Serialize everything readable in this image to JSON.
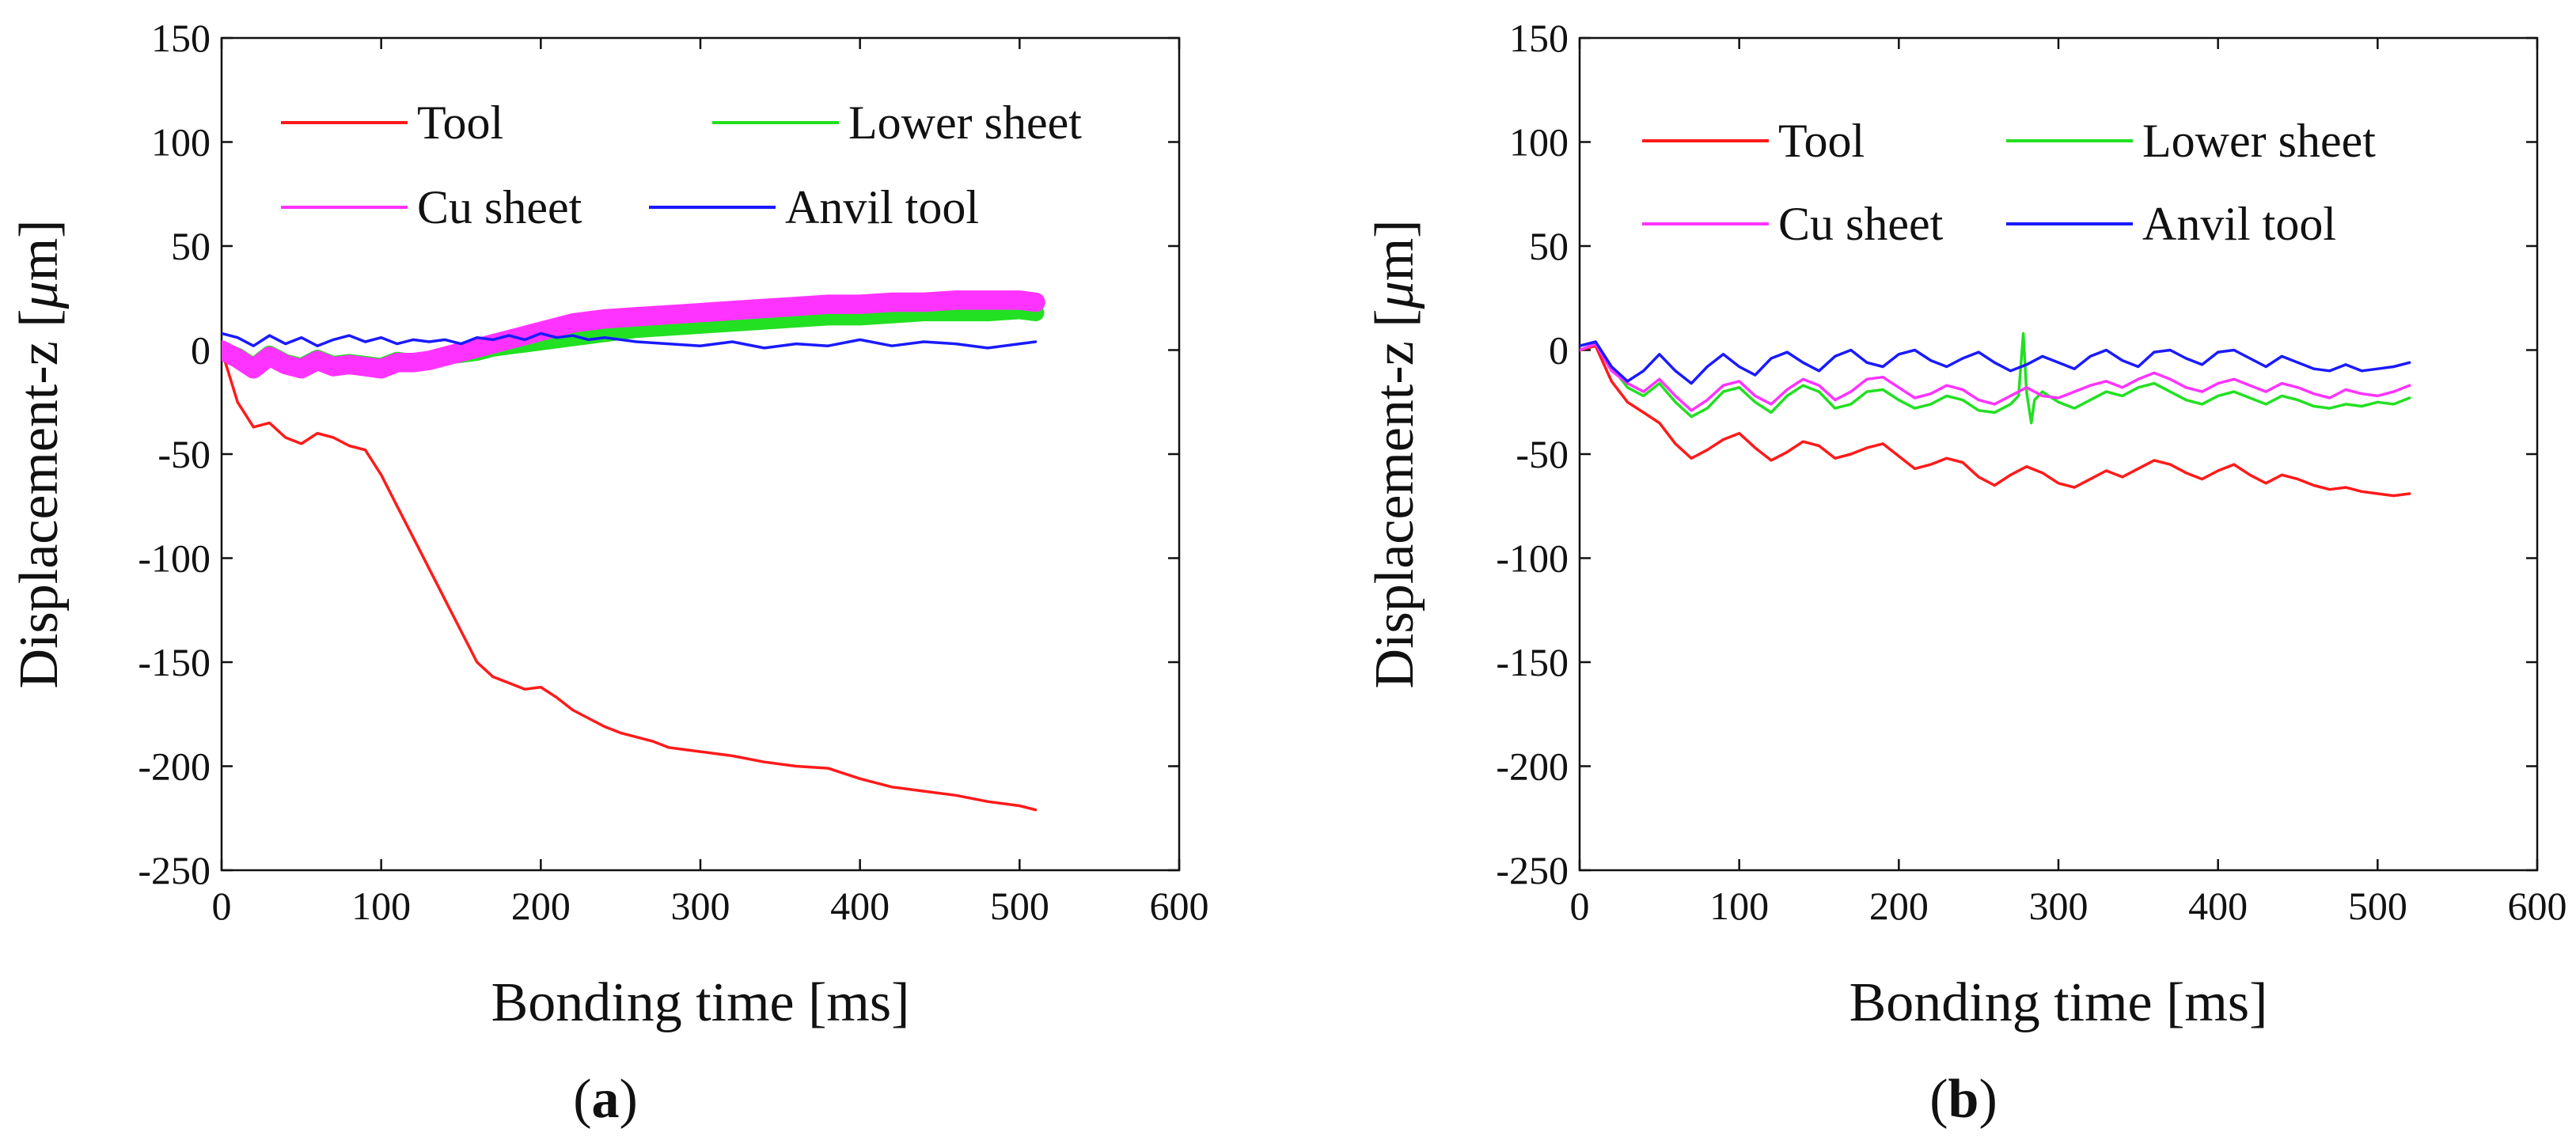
{
  "chart_data": [
    {
      "type": "line",
      "panel_label": "a",
      "xlabel": "Bonding time [ms]",
      "ylabel_prefix": "Displacement-z [",
      "ylabel_unit_italic": "μ",
      "ylabel_suffix": "m]",
      "xlim": [
        0,
        600
      ],
      "ylim": [
        -250,
        150
      ],
      "xticks": [
        0,
        100,
        200,
        300,
        400,
        500,
        600
      ],
      "yticks": [
        -250,
        -200,
        -150,
        -100,
        -50,
        0,
        50,
        100,
        150
      ],
      "legend": {
        "placement": "top",
        "entries": [
          "Tool",
          "Lower sheet",
          "Cu sheet",
          "Anvil tool"
        ]
      },
      "series": [
        {
          "name": "Tool",
          "color": "#ff1a1a",
          "band": 0,
          "x": [
            0,
            10,
            20,
            30,
            40,
            50,
            60,
            70,
            80,
            90,
            100,
            110,
            120,
            130,
            140,
            150,
            160,
            170,
            180,
            190,
            200,
            210,
            220,
            230,
            240,
            250,
            260,
            270,
            280,
            290,
            300,
            320,
            340,
            360,
            380,
            400,
            420,
            440,
            460,
            480,
            500,
            510
          ],
          "y": [
            0,
            -25,
            -37,
            -35,
            -42,
            -45,
            -40,
            -42,
            -46,
            -48,
            -60,
            -75,
            -90,
            -105,
            -120,
            -135,
            -150,
            -157,
            -160,
            -163,
            -162,
            -167,
            -173,
            -177,
            -181,
            -184,
            -186,
            -188,
            -191,
            -192,
            -193,
            -195,
            -198,
            -200,
            -201,
            -206,
            -210,
            -212,
            -214,
            -217,
            -219,
            -221
          ]
        },
        {
          "name": "Lower sheet",
          "color": "#22e022",
          "band": 7,
          "x": [
            0,
            10,
            20,
            30,
            40,
            50,
            60,
            70,
            80,
            90,
            100,
            110,
            120,
            130,
            140,
            150,
            160,
            170,
            180,
            190,
            200,
            210,
            220,
            230,
            240,
            260,
            280,
            300,
            320,
            340,
            360,
            380,
            400,
            420,
            440,
            460,
            480,
            500,
            510
          ],
          "y": [
            0,
            -3,
            -8,
            -2,
            -6,
            -8,
            -4,
            -7,
            -6,
            -7,
            -8,
            -5,
            -6,
            -5,
            -3,
            -2,
            -1,
            1,
            2,
            3,
            4,
            5,
            6,
            7,
            8,
            10,
            11,
            12,
            13,
            14,
            15,
            16,
            16,
            17,
            18,
            18,
            18,
            19,
            18
          ]
        },
        {
          "name": "Cu sheet",
          "color": "#ff33ff",
          "band": 8,
          "x": [
            0,
            10,
            20,
            30,
            40,
            50,
            60,
            70,
            80,
            90,
            100,
            110,
            120,
            130,
            140,
            150,
            160,
            170,
            180,
            190,
            200,
            210,
            220,
            230,
            240,
            260,
            280,
            300,
            320,
            340,
            360,
            380,
            400,
            420,
            440,
            460,
            480,
            500,
            510
          ],
          "y": [
            0,
            -4,
            -9,
            -3,
            -7,
            -9,
            -5,
            -8,
            -7,
            -8,
            -9,
            -6,
            -6,
            -5,
            -3,
            -1,
            1,
            3,
            5,
            7,
            9,
            11,
            13,
            14,
            15,
            16,
            17,
            18,
            19,
            20,
            21,
            22,
            22,
            23,
            23,
            24,
            24,
            24,
            23
          ]
        },
        {
          "name": "Anvil tool",
          "color": "#1a1aff",
          "band": 0,
          "x": [
            0,
            10,
            20,
            30,
            40,
            50,
            60,
            70,
            80,
            90,
            100,
            110,
            120,
            130,
            140,
            150,
            160,
            170,
            180,
            190,
            200,
            210,
            220,
            230,
            240,
            260,
            280,
            300,
            320,
            340,
            360,
            380,
            400,
            420,
            440,
            460,
            480,
            500,
            510
          ],
          "y": [
            8,
            6,
            2,
            7,
            3,
            6,
            2,
            5,
            7,
            4,
            6,
            3,
            5,
            4,
            5,
            3,
            6,
            5,
            7,
            5,
            8,
            6,
            7,
            5,
            6,
            4,
            3,
            2,
            4,
            1,
            3,
            2,
            5,
            2,
            4,
            3,
            1,
            3,
            4
          ]
        }
      ]
    },
    {
      "type": "line",
      "panel_label": "b",
      "xlabel": "Bonding time [ms]",
      "ylabel_prefix": "Displacement-z [",
      "ylabel_unit_italic": "μ",
      "ylabel_suffix": "m]",
      "xlim": [
        0,
        600
      ],
      "ylim": [
        -250,
        150
      ],
      "xticks": [
        0,
        100,
        200,
        300,
        400,
        500,
        600
      ],
      "yticks": [
        -250,
        -200,
        -150,
        -100,
        -50,
        0,
        50,
        100,
        150
      ],
      "legend": {
        "placement": "top",
        "entries": [
          "Tool",
          "Lower sheet",
          "Cu sheet",
          "Anvil tool"
        ]
      },
      "series": [
        {
          "name": "Tool",
          "color": "#ff1a1a",
          "band": 0,
          "x": [
            0,
            10,
            20,
            30,
            40,
            50,
            60,
            70,
            80,
            90,
            100,
            110,
            120,
            130,
            140,
            150,
            160,
            170,
            180,
            190,
            200,
            210,
            220,
            230,
            240,
            250,
            260,
            270,
            280,
            290,
            300,
            310,
            320,
            330,
            340,
            350,
            360,
            370,
            380,
            390,
            400,
            410,
            420,
            430,
            440,
            450,
            460,
            470,
            480,
            490,
            500,
            510,
            520
          ],
          "y": [
            0,
            2,
            -15,
            -25,
            -30,
            -35,
            -45,
            -52,
            -48,
            -43,
            -40,
            -47,
            -53,
            -49,
            -44,
            -46,
            -52,
            -50,
            -47,
            -45,
            -51,
            -57,
            -55,
            -52,
            -54,
            -61,
            -65,
            -60,
            -56,
            -59,
            -64,
            -66,
            -62,
            -58,
            -61,
            -57,
            -53,
            -55,
            -59,
            -62,
            -58,
            -55,
            -60,
            -64,
            -60,
            -62,
            -65,
            -67,
            -66,
            -68,
            -69,
            -70,
            -69
          ]
        },
        {
          "name": "Lower sheet",
          "color": "#22e022",
          "band": 0,
          "x": [
            0,
            10,
            20,
            30,
            40,
            50,
            60,
            70,
            80,
            90,
            100,
            110,
            120,
            130,
            140,
            150,
            160,
            170,
            180,
            190,
            200,
            210,
            220,
            230,
            240,
            250,
            260,
            270,
            275,
            278,
            280,
            283,
            285,
            290,
            300,
            310,
            320,
            330,
            340,
            350,
            360,
            370,
            380,
            390,
            400,
            410,
            420,
            430,
            440,
            450,
            460,
            470,
            480,
            490,
            500,
            510,
            520
          ],
          "y": [
            0,
            3,
            -8,
            -18,
            -22,
            -16,
            -25,
            -32,
            -28,
            -20,
            -18,
            -25,
            -30,
            -22,
            -17,
            -20,
            -28,
            -26,
            -20,
            -19,
            -24,
            -28,
            -26,
            -22,
            -24,
            -29,
            -30,
            -26,
            -22,
            8,
            -20,
            -35,
            -24,
            -20,
            -25,
            -28,
            -24,
            -20,
            -22,
            -18,
            -16,
            -20,
            -24,
            -26,
            -22,
            -20,
            -23,
            -26,
            -22,
            -24,
            -27,
            -28,
            -26,
            -27,
            -25,
            -26,
            -23
          ]
        },
        {
          "name": "Cu sheet",
          "color": "#ff33ff",
          "band": 0,
          "x": [
            0,
            10,
            20,
            30,
            40,
            50,
            60,
            70,
            80,
            90,
            100,
            110,
            120,
            130,
            140,
            150,
            160,
            170,
            180,
            190,
            200,
            210,
            220,
            230,
            240,
            250,
            260,
            270,
            280,
            290,
            300,
            310,
            320,
            330,
            340,
            350,
            360,
            370,
            380,
            390,
            400,
            410,
            420,
            430,
            440,
            450,
            460,
            470,
            480,
            490,
            500,
            510,
            520
          ],
          "y": [
            0,
            3,
            -10,
            -16,
            -20,
            -14,
            -22,
            -29,
            -24,
            -17,
            -15,
            -22,
            -26,
            -19,
            -14,
            -17,
            -24,
            -20,
            -14,
            -13,
            -18,
            -23,
            -21,
            -17,
            -19,
            -24,
            -26,
            -22,
            -18,
            -22,
            -23,
            -20,
            -17,
            -15,
            -18,
            -14,
            -11,
            -14,
            -18,
            -20,
            -16,
            -14,
            -17,
            -20,
            -16,
            -18,
            -21,
            -23,
            -19,
            -21,
            -22,
            -20,
            -17
          ]
        },
        {
          "name": "Anvil tool",
          "color": "#1a1aff",
          "band": 0,
          "x": [
            0,
            10,
            20,
            30,
            40,
            50,
            60,
            70,
            80,
            90,
            100,
            110,
            120,
            130,
            140,
            150,
            160,
            170,
            180,
            190,
            200,
            210,
            220,
            230,
            240,
            250,
            260,
            270,
            280,
            290,
            300,
            310,
            320,
            330,
            340,
            350,
            360,
            370,
            380,
            390,
            400,
            410,
            420,
            430,
            440,
            450,
            460,
            470,
            480,
            490,
            500,
            510,
            520
          ],
          "y": [
            2,
            4,
            -8,
            -15,
            -10,
            -2,
            -10,
            -16,
            -8,
            -2,
            -8,
            -12,
            -4,
            -1,
            -6,
            -10,
            -3,
            0,
            -6,
            -8,
            -2,
            0,
            -5,
            -8,
            -4,
            -1,
            -6,
            -10,
            -7,
            -3,
            -6,
            -9,
            -3,
            0,
            -5,
            -8,
            -1,
            0,
            -4,
            -7,
            -1,
            0,
            -4,
            -8,
            -3,
            -6,
            -9,
            -10,
            -7,
            -10,
            -9,
            -8,
            -6
          ]
        }
      ]
    }
  ]
}
